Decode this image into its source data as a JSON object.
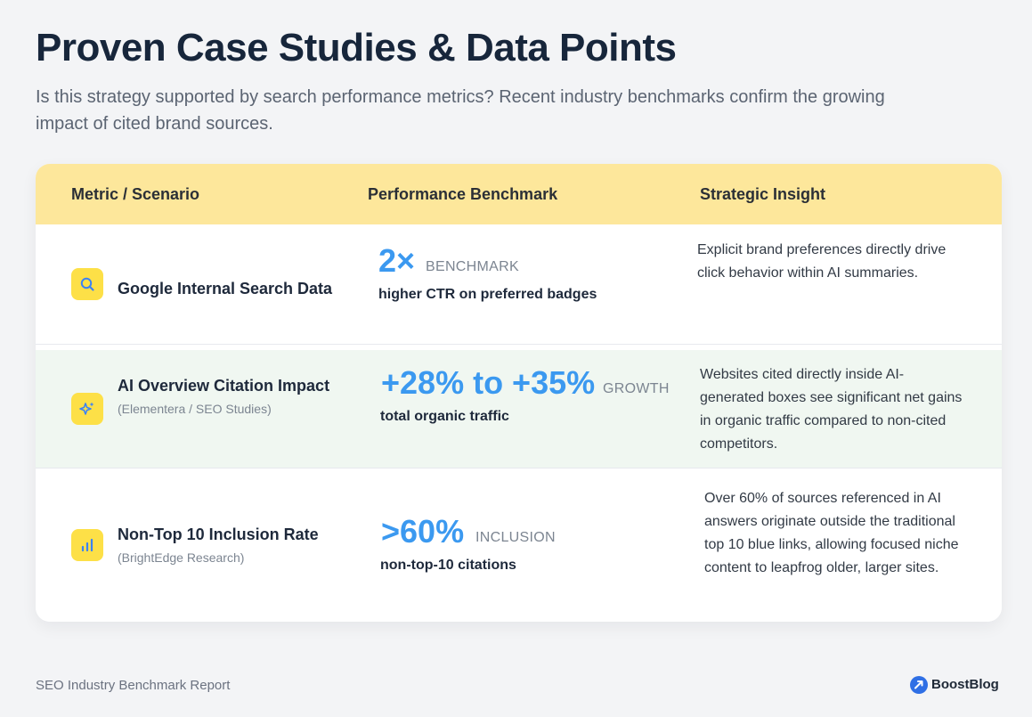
{
  "header": {
    "title": "Proven Case Studies & Data Points",
    "subtitle": "Is this strategy supported by search performance metrics? Recent industry benchmarks confirm the growing impact of cited brand sources."
  },
  "table": {
    "columns": [
      "Metric / Scenario",
      "Performance Benchmark",
      "Strategic Insight"
    ],
    "rows": [
      {
        "icon": "search-icon",
        "scenario": "Google Internal Search Data",
        "source": "",
        "value": "2×",
        "tag": "BENCHMARK",
        "caption": "higher CTR on preferred badges",
        "insight": "Explicit brand preferences directly drive click behavior within AI summaries."
      },
      {
        "icon": "sparkle-icon",
        "scenario": "AI Overview Citation Impact",
        "source": "(Elementera / SEO Studies)",
        "value": "+28% to +35%",
        "tag": "GROWTH",
        "caption": "total organic traffic",
        "insight": "Websites cited directly inside AI-generated boxes see significant net gains in organic traffic compared to non-cited competitors."
      },
      {
        "icon": "bar-chart-icon",
        "scenario": "Non-Top 10 Inclusion Rate",
        "source": "(BrightEdge Research)",
        "value": ">60%",
        "tag": "INCLUSION",
        "caption": "non-top-10 citations",
        "insight": "Over 60% of sources referenced in AI answers originate outside the traditional top 10 blue links, allowing focused niche content to leapfrog older, larger sites."
      }
    ]
  },
  "footer": {
    "note": "SEO Industry Benchmark Report",
    "brand": "BoostBlog",
    "brand_icon": "boostblog-logo-icon"
  },
  "colors": {
    "header_band": "#fde79b",
    "icon_badge": "#fde047",
    "accent_blue": "#3b99f0",
    "highlight_row": "#f0f7f1"
  }
}
